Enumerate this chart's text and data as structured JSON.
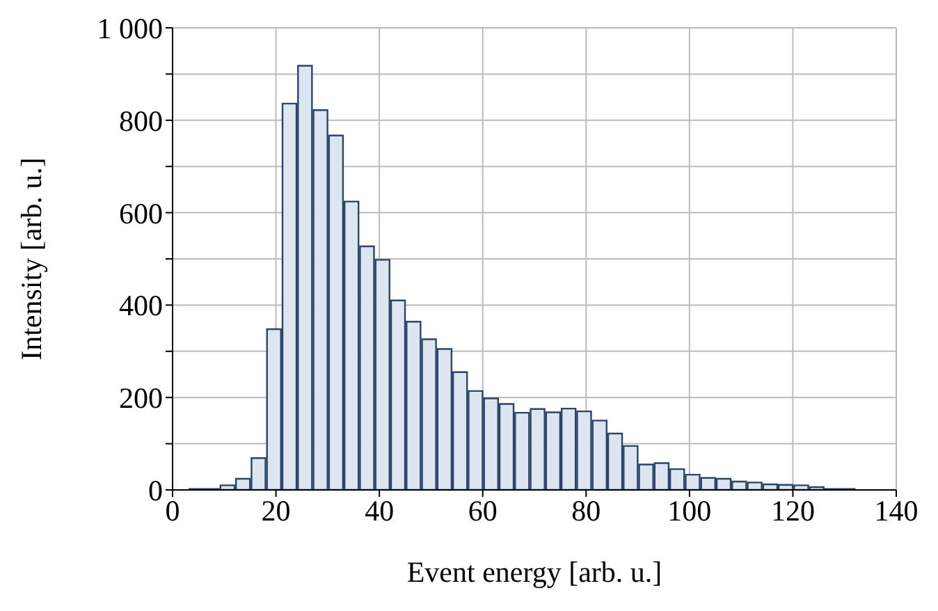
{
  "chart_data": {
    "type": "histogram",
    "xlabel": "Event energy [arb. u.]",
    "ylabel": "Intensity [arb. u.]",
    "bins": [
      3,
      6,
      9,
      12,
      15,
      18,
      21,
      24,
      27,
      30,
      33,
      36,
      39,
      42,
      45,
      48,
      51,
      54,
      57,
      60,
      63,
      66,
      69,
      72,
      75,
      78,
      81,
      84,
      87,
      90,
      93,
      96,
      99,
      102,
      105,
      108,
      111,
      114,
      117,
      120,
      123,
      126,
      129,
      132
    ],
    "values": [
      2,
      2,
      10,
      24,
      69,
      348,
      836,
      918,
      822,
      767,
      624,
      527,
      498,
      410,
      364,
      326,
      305,
      255,
      214,
      198,
      186,
      167,
      175,
      168,
      176,
      170,
      150,
      122,
      95,
      55,
      58,
      45,
      33,
      26,
      24,
      18,
      16,
      12,
      11,
      10,
      6,
      2,
      2
    ],
    "color": "#dce6f0",
    "xlim": [
      0,
      140
    ],
    "xticks": [
      0,
      20,
      40,
      60,
      80,
      100,
      120,
      140
    ],
    "ylim": [
      0,
      1000
    ],
    "yticks": [
      0,
      {
        "value": 100,
        "label": null
      },
      200,
      {
        "value": 300,
        "label": null
      },
      400,
      {
        "value": 500,
        "label": null
      },
      600,
      {
        "value": 700,
        "label": null
      },
      800,
      {
        "value": 900,
        "label": null
      },
      {
        "value": 1000,
        "label": "1 000"
      }
    ],
    "grid": true,
    "legend": false
  }
}
